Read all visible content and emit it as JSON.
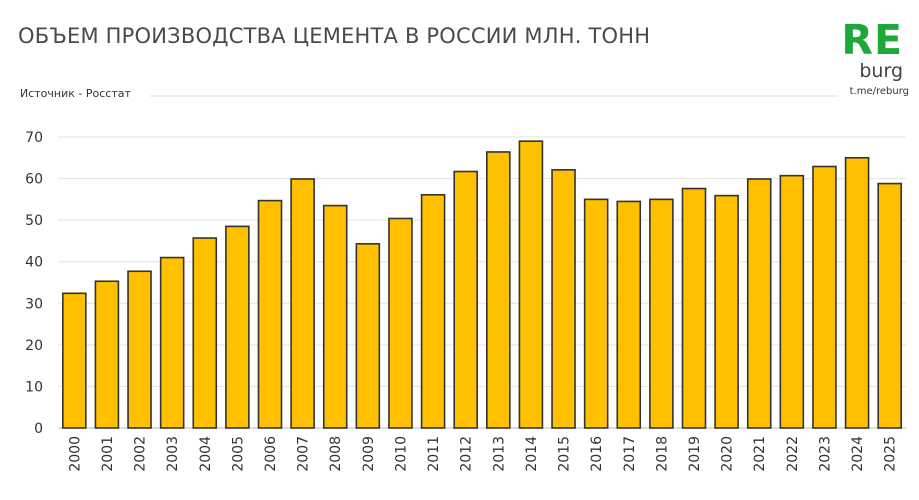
{
  "header": {
    "title": "ОБЪЕМ ПРОИЗВОДСТВА ЦЕМЕНТА В РОССИИ МЛН. ТОНН",
    "source": "Источник - Росстат"
  },
  "logo": {
    "main": "RE",
    "sub": "burg",
    "link": "t.me/reburg",
    "color": "#1ea83c"
  },
  "chart_data": {
    "type": "bar",
    "title": "ОБЪЕМ ПРОИЗВОДСТВА ЦЕМЕНТА В РОССИИ МЛН. ТОНН",
    "xlabel": "",
    "ylabel": "",
    "ylim": [
      0,
      70
    ],
    "yticks": [
      0,
      10,
      20,
      30,
      40,
      50,
      60,
      70
    ],
    "grid": true,
    "legend": "none",
    "bar_color": "#ffc000",
    "bar_edge_color": "#333333",
    "categories": [
      "2000",
      "2001",
      "2002",
      "2003",
      "2004",
      "2005",
      "2006",
      "2007",
      "2008",
      "2009",
      "2010",
      "2011",
      "2012",
      "2013",
      "2014",
      "2015",
      "2016",
      "2017",
      "2018",
      "2019",
      "2020",
      "2021",
      "2022",
      "2023",
      "2024",
      "2025"
    ],
    "values": [
      32.4,
      35.3,
      37.7,
      41.0,
      45.7,
      48.5,
      54.7,
      59.9,
      53.5,
      44.3,
      50.4,
      56.1,
      61.7,
      66.4,
      69.0,
      62.1,
      55.0,
      54.5,
      55.0,
      57.6,
      55.9,
      59.9,
      60.7,
      62.9,
      65.0,
      58.8
    ]
  }
}
